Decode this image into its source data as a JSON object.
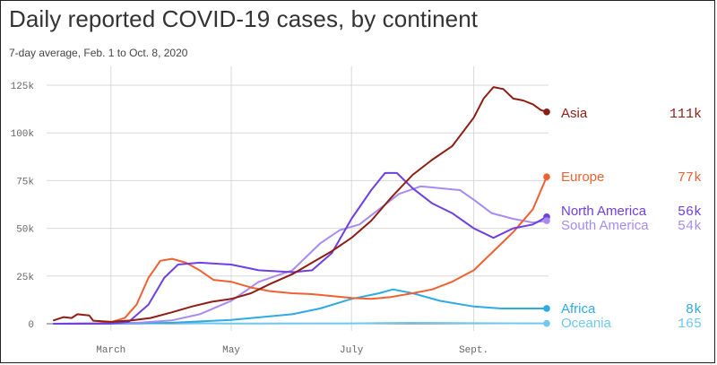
{
  "header": {
    "title": "Daily reported COVID-19 cases, by continent",
    "subtitle": "7-day average, Feb. 1 to Oct. 8, 2020"
  },
  "colors": {
    "Asia": "#8f1d14",
    "Europe": "#f06031",
    "North America": "#6f3fe0",
    "South America": "#a88bee",
    "Africa": "#2eaae4",
    "Oceania": "#6ec8ef",
    "grid": "#d8d8d8",
    "baseline": "#666666"
  },
  "chart_data": {
    "type": "line",
    "title": "Daily reported COVID-19 cases, by continent",
    "subtitle": "7-day average, Feb. 1 to Oct. 8, 2020",
    "xlabel": "",
    "ylabel": "",
    "x_range": [
      "2020-02-01",
      "2020-10-08"
    ],
    "x_ticks": [
      {
        "label": "March",
        "date": "2020-03-01"
      },
      {
        "label": "May",
        "date": "2020-05-01"
      },
      {
        "label": "July",
        "date": "2020-07-01"
      },
      {
        "label": "Sept.",
        "date": "2020-09-01"
      }
    ],
    "ylim": [
      0,
      130000
    ],
    "y_ticks": [
      {
        "label": "0",
        "value": 0
      },
      {
        "label": "25k",
        "value": 25000
      },
      {
        "label": "50k",
        "value": 50000
      },
      {
        "label": "75k",
        "value": 75000
      },
      {
        "label": "100k",
        "value": 100000
      },
      {
        "label": "125k",
        "value": 125000
      }
    ],
    "grid": true,
    "legend": "end labels at right",
    "series": [
      {
        "name": "Asia",
        "end_label": "111k",
        "points": [
          [
            "2020-02-01",
            1800
          ],
          [
            "2020-02-06",
            3500
          ],
          [
            "2020-02-10",
            3000
          ],
          [
            "2020-02-13",
            5000
          ],
          [
            "2020-02-19",
            4300
          ],
          [
            "2020-02-21",
            1600
          ],
          [
            "2020-03-01",
            1000
          ],
          [
            "2020-03-11",
            1700
          ],
          [
            "2020-03-21",
            3000
          ],
          [
            "2020-04-01",
            6000
          ],
          [
            "2020-04-11",
            9000
          ],
          [
            "2020-04-21",
            11500
          ],
          [
            "2020-05-01",
            13000
          ],
          [
            "2020-05-11",
            16000
          ],
          [
            "2020-05-21",
            21000
          ],
          [
            "2020-06-01",
            26000
          ],
          [
            "2020-06-11",
            32000
          ],
          [
            "2020-06-21",
            38000
          ],
          [
            "2020-07-01",
            45000
          ],
          [
            "2020-07-11",
            54000
          ],
          [
            "2020-07-21",
            66000
          ],
          [
            "2020-08-01",
            78000
          ],
          [
            "2020-08-11",
            86000
          ],
          [
            "2020-08-21",
            93000
          ],
          [
            "2020-09-01",
            108000
          ],
          [
            "2020-09-06",
            118000
          ],
          [
            "2020-09-11",
            124000
          ],
          [
            "2020-09-16",
            123000
          ],
          [
            "2020-09-21",
            118000
          ],
          [
            "2020-09-26",
            117000
          ],
          [
            "2020-10-01",
            115000
          ],
          [
            "2020-10-05",
            112000
          ],
          [
            "2020-10-08",
            111000
          ]
        ]
      },
      {
        "name": "Europe",
        "end_label": "77k",
        "points": [
          [
            "2020-02-01",
            0
          ],
          [
            "2020-02-21",
            0
          ],
          [
            "2020-03-01",
            800
          ],
          [
            "2020-03-08",
            3000
          ],
          [
            "2020-03-14",
            10000
          ],
          [
            "2020-03-20",
            24000
          ],
          [
            "2020-03-26",
            33000
          ],
          [
            "2020-04-01",
            34000
          ],
          [
            "2020-04-08",
            32000
          ],
          [
            "2020-04-15",
            28000
          ],
          [
            "2020-04-22",
            23000
          ],
          [
            "2020-05-01",
            22000
          ],
          [
            "2020-05-11",
            19000
          ],
          [
            "2020-05-21",
            17000
          ],
          [
            "2020-06-01",
            16000
          ],
          [
            "2020-06-11",
            15500
          ],
          [
            "2020-06-21",
            14500
          ],
          [
            "2020-07-01",
            13500
          ],
          [
            "2020-07-11",
            13000
          ],
          [
            "2020-07-21",
            14000
          ],
          [
            "2020-08-01",
            16000
          ],
          [
            "2020-08-11",
            18000
          ],
          [
            "2020-08-21",
            22000
          ],
          [
            "2020-09-01",
            28000
          ],
          [
            "2020-09-11",
            38000
          ],
          [
            "2020-09-21",
            48000
          ],
          [
            "2020-10-01",
            60000
          ],
          [
            "2020-10-08",
            77000
          ]
        ]
      },
      {
        "name": "North America",
        "end_label": "56k",
        "points": [
          [
            "2020-02-01",
            0
          ],
          [
            "2020-03-01",
            100
          ],
          [
            "2020-03-10",
            1000
          ],
          [
            "2020-03-20",
            10000
          ],
          [
            "2020-03-28",
            24000
          ],
          [
            "2020-04-04",
            31000
          ],
          [
            "2020-04-15",
            32000
          ],
          [
            "2020-05-01",
            31000
          ],
          [
            "2020-05-15",
            28000
          ],
          [
            "2020-06-01",
            27000
          ],
          [
            "2020-06-11",
            28000
          ],
          [
            "2020-06-21",
            37000
          ],
          [
            "2020-07-01",
            55000
          ],
          [
            "2020-07-11",
            70000
          ],
          [
            "2020-07-18",
            79000
          ],
          [
            "2020-07-24",
            79000
          ],
          [
            "2020-08-01",
            71000
          ],
          [
            "2020-08-11",
            63000
          ],
          [
            "2020-08-21",
            58000
          ],
          [
            "2020-09-01",
            50000
          ],
          [
            "2020-09-11",
            45000
          ],
          [
            "2020-09-21",
            50000
          ],
          [
            "2020-10-01",
            52000
          ],
          [
            "2020-10-08",
            56000
          ]
        ]
      },
      {
        "name": "South America",
        "end_label": "54k",
        "points": [
          [
            "2020-02-01",
            0
          ],
          [
            "2020-03-15",
            500
          ],
          [
            "2020-04-01",
            1800
          ],
          [
            "2020-04-15",
            5000
          ],
          [
            "2020-05-01",
            12000
          ],
          [
            "2020-05-15",
            22000
          ],
          [
            "2020-06-01",
            28000
          ],
          [
            "2020-06-15",
            42000
          ],
          [
            "2020-06-25",
            49000
          ],
          [
            "2020-07-05",
            52000
          ],
          [
            "2020-07-15",
            60000
          ],
          [
            "2020-07-25",
            68000
          ],
          [
            "2020-08-05",
            72000
          ],
          [
            "2020-08-15",
            71000
          ],
          [
            "2020-08-25",
            70000
          ],
          [
            "2020-09-01",
            65000
          ],
          [
            "2020-09-10",
            58000
          ],
          [
            "2020-09-21",
            55000
          ],
          [
            "2020-10-01",
            53000
          ],
          [
            "2020-10-08",
            54000
          ]
        ]
      },
      {
        "name": "Africa",
        "end_label": "8k",
        "points": [
          [
            "2020-02-01",
            0
          ],
          [
            "2020-03-15",
            100
          ],
          [
            "2020-04-01",
            500
          ],
          [
            "2020-05-01",
            2000
          ],
          [
            "2020-06-01",
            5000
          ],
          [
            "2020-06-15",
            8000
          ],
          [
            "2020-07-01",
            13000
          ],
          [
            "2020-07-15",
            16000
          ],
          [
            "2020-07-22",
            18000
          ],
          [
            "2020-08-01",
            16000
          ],
          [
            "2020-08-15",
            12000
          ],
          [
            "2020-09-01",
            9000
          ],
          [
            "2020-09-15",
            8000
          ],
          [
            "2020-10-08",
            8000
          ]
        ]
      },
      {
        "name": "Oceania",
        "end_label": "165",
        "points": [
          [
            "2020-02-01",
            0
          ],
          [
            "2020-03-20",
            300
          ],
          [
            "2020-04-01",
            400
          ],
          [
            "2020-05-01",
            100
          ],
          [
            "2020-07-01",
            200
          ],
          [
            "2020-08-01",
            500
          ],
          [
            "2020-09-01",
            300
          ],
          [
            "2020-10-08",
            165
          ]
        ]
      }
    ]
  }
}
